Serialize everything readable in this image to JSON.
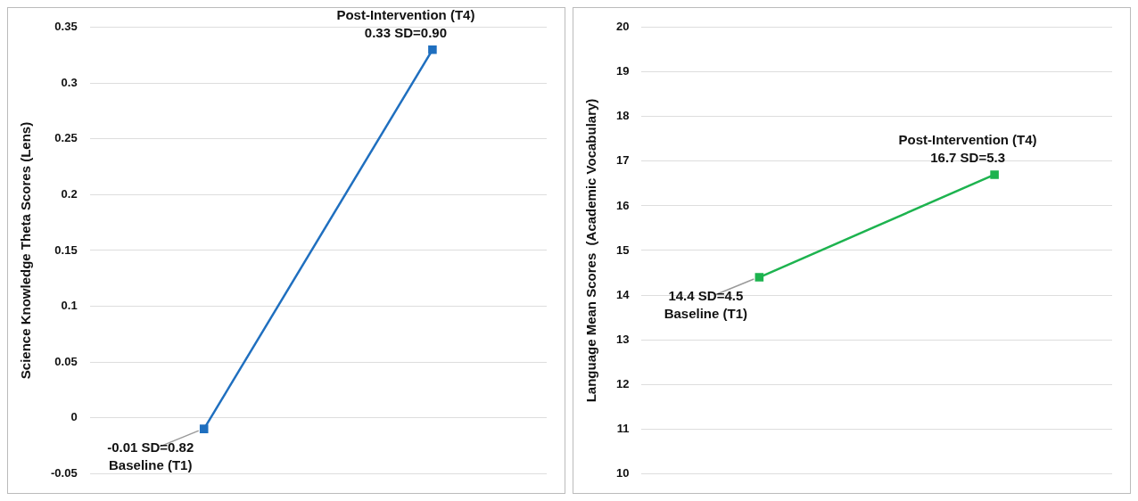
{
  "chart_data": [
    {
      "type": "line",
      "ylabel": "Science Knowledge Theta Scores (Lens)",
      "categories": [
        null,
        null
      ],
      "series": [
        {
          "color": "#1f6fbf",
          "values": [
            -0.01,
            0.33
          ],
          "value_labels": [
            "-0.01 SD=0.82",
            "0.33 SD=0.90"
          ]
        }
      ],
      "annotations": [
        "Baseline (T1)",
        "Post-Intervention (T4)"
      ],
      "ylim": [
        -0.05,
        0.35
      ],
      "yticks": [
        -0.05,
        0,
        0.05,
        0.1,
        0.15,
        0.2,
        0.25,
        0.3,
        0.35
      ],
      "grid": "y",
      "legend": false,
      "marker": "square",
      "line_style": "solid",
      "tick_labels": "y"
    },
    {
      "type": "line",
      "ylabel": "Language Mean Scores  (Academic Vocabulary)",
      "categories": [
        null,
        null
      ],
      "series": [
        {
          "color": "#1db34f",
          "values": [
            14.4,
            16.7
          ],
          "value_labels": [
            "14.4 SD=4.5",
            "16.7 SD=5.3"
          ]
        }
      ],
      "annotations": [
        "Baseline (T1)",
        "Post-Intervention (T4)"
      ],
      "ylim": [
        10,
        20
      ],
      "yticks": [
        10,
        11,
        12,
        13,
        14,
        15,
        16,
        17,
        18,
        19,
        20
      ],
      "grid": "y",
      "legend": false,
      "marker": "square",
      "line_style": "solid",
      "tick_labels": "y"
    }
  ]
}
